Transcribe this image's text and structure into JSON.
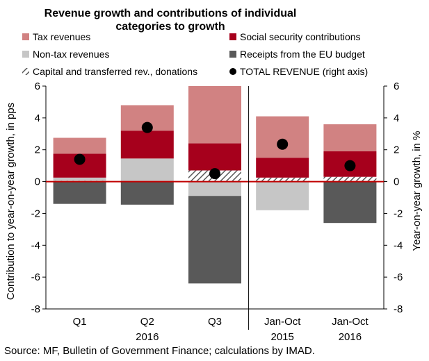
{
  "chart_data": {
    "type": "bar",
    "title_line1": "Revenue growth and contributions of individual",
    "title_line2": "categories to growth",
    "ylabel": "Contribution to year-on-year growth, in pps",
    "y2label": "Year-on-year growth, in %",
    "ylim": [
      -8,
      6
    ],
    "y2lim": [
      -8,
      6
    ],
    "yticks": [
      "-8",
      "-6",
      "-4",
      "-2",
      "0",
      "2",
      "4",
      "6"
    ],
    "y2ticks": [
      "-8",
      "-6",
      "-4",
      "-2",
      "0",
      "2",
      "4",
      "6"
    ],
    "categories": [
      {
        "label": "Q1",
        "sublabel": ""
      },
      {
        "label": "Q2",
        "sublabel": "2016"
      },
      {
        "label": "Q3",
        "sublabel": ""
      },
      {
        "label": "Jan-Oct",
        "sublabel": "2015"
      },
      {
        "label": "Jan-Oct",
        "sublabel": "2016"
      }
    ],
    "series": [
      {
        "name": "Tax revenues",
        "color": "#d18282",
        "values": [
          1.0,
          1.6,
          3.6,
          2.6,
          1.7
        ]
      },
      {
        "name": "Social security contributions",
        "color": "#a6001c",
        "values": [
          1.5,
          1.75,
          1.7,
          1.25,
          1.6
        ]
      },
      {
        "name": "Non-tax revenues",
        "color": "#c6c6c6",
        "values": [
          0.2,
          1.45,
          -0.9,
          -1.8,
          0.0
        ]
      },
      {
        "name": "Receipts from the EU budget",
        "color": "#595959",
        "values": [
          -1.4,
          -1.45,
          -5.5,
          0.0,
          -2.6
        ]
      },
      {
        "name": "Capital and transferred rev., donations",
        "color": "hatch",
        "values": [
          0.05,
          0.0,
          0.7,
          0.25,
          0.3
        ]
      }
    ],
    "total": {
      "name": "TOTAL REVENUE (right axis)",
      "color": "#000000",
      "values": [
        1.4,
        3.4,
        0.5,
        2.35,
        1.0
      ]
    },
    "source": "Source: MF, Bulletin of Government Finance; calculations by IMAD."
  }
}
